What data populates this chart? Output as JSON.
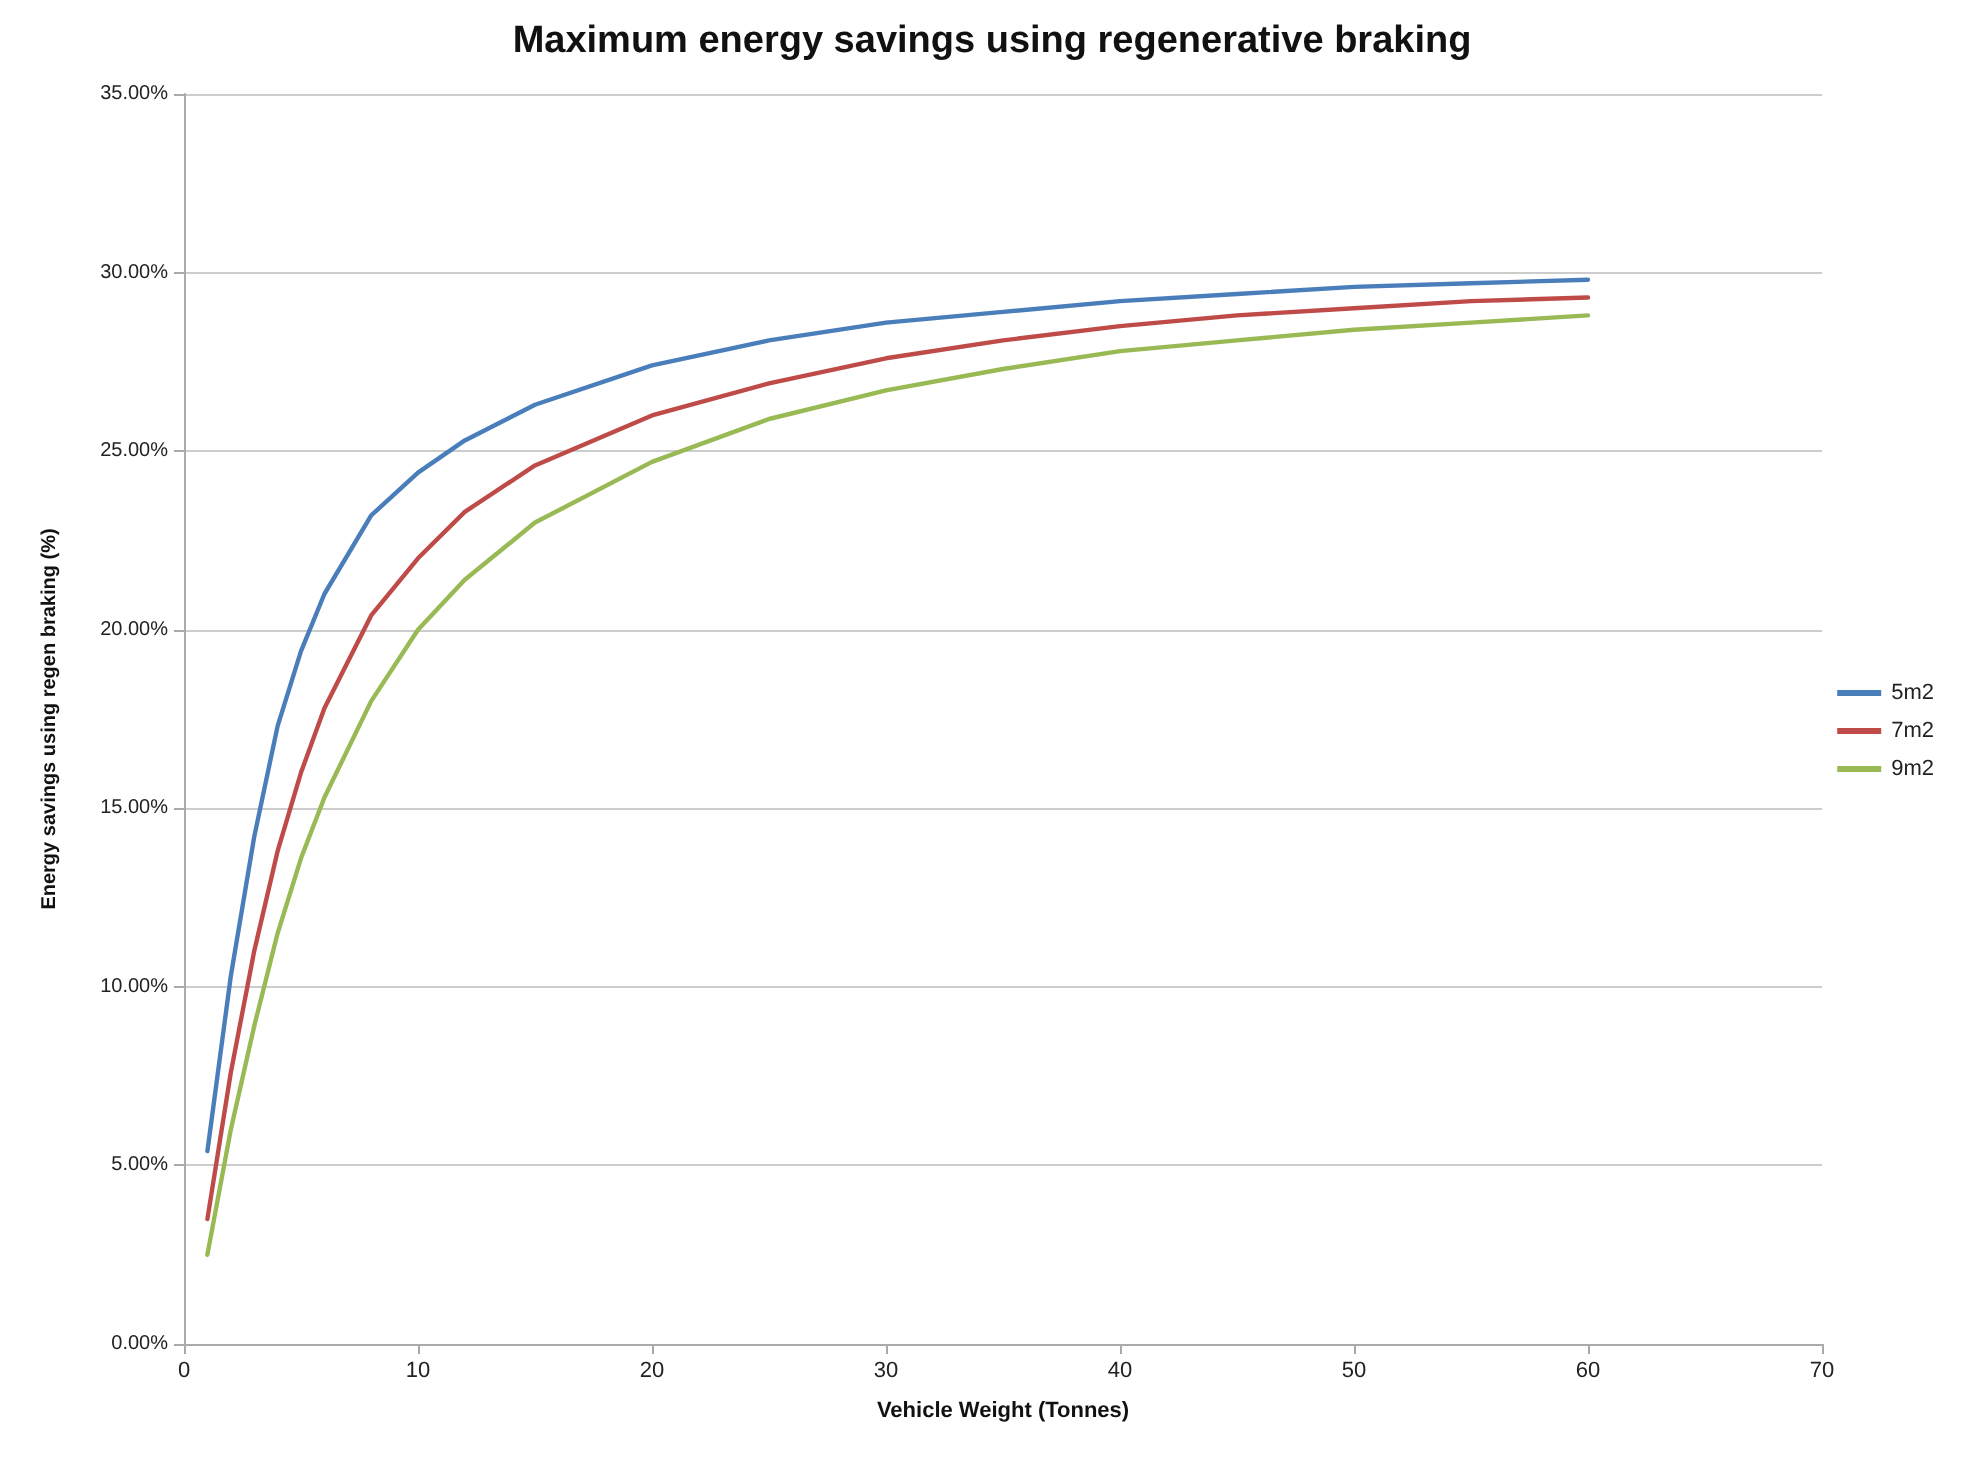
{
  "chart_data": {
    "type": "line",
    "title": "Maximum energy savings using regenerative braking",
    "xlabel": "Vehicle Weight (Tonnes)",
    "ylabel": "Energy savings using regen braking (%)",
    "x": [
      1,
      2,
      3,
      4,
      5,
      6,
      8,
      10,
      12,
      15,
      20,
      25,
      30,
      35,
      40,
      45,
      50,
      55,
      60
    ],
    "series": [
      {
        "name": "5m2",
        "color": "#4a7ebb",
        "values": [
          5.4,
          10.3,
          14.2,
          17.3,
          19.4,
          21.0,
          23.2,
          24.4,
          25.3,
          26.3,
          27.4,
          28.1,
          28.6,
          28.9,
          29.2,
          29.4,
          29.6,
          29.7,
          29.8
        ]
      },
      {
        "name": "7m2",
        "color": "#be4b48",
        "values": [
          3.5,
          7.6,
          11.0,
          13.8,
          16.0,
          17.8,
          20.4,
          22.0,
          23.3,
          24.6,
          26.0,
          26.9,
          27.6,
          28.1,
          28.5,
          28.8,
          29.0,
          29.2,
          29.3
        ]
      },
      {
        "name": "9m2",
        "color": "#98b954",
        "values": [
          2.5,
          6.0,
          8.9,
          11.5,
          13.6,
          15.3,
          18.0,
          20.0,
          21.4,
          23.0,
          24.7,
          25.9,
          26.7,
          27.3,
          27.8,
          28.1,
          28.4,
          28.6,
          28.8
        ]
      }
    ],
    "xlim": [
      0,
      70
    ],
    "xticks": [
      0,
      10,
      20,
      30,
      40,
      50,
      60,
      70
    ],
    "ylim": [
      0,
      35
    ],
    "yticks": [
      {
        "value": 0,
        "label": "0.00%"
      },
      {
        "value": 5,
        "label": "5.00%"
      },
      {
        "value": 10,
        "label": "10.00%"
      },
      {
        "value": 15,
        "label": "15.00%"
      },
      {
        "value": 20,
        "label": "20.00%"
      },
      {
        "value": 25,
        "label": "25.00%"
      },
      {
        "value": 30,
        "label": "30.00%"
      },
      {
        "value": 35,
        "label": "35.00%"
      }
    ],
    "grid": "y",
    "legend": "right",
    "marker": "none",
    "line_style": "solid"
  }
}
